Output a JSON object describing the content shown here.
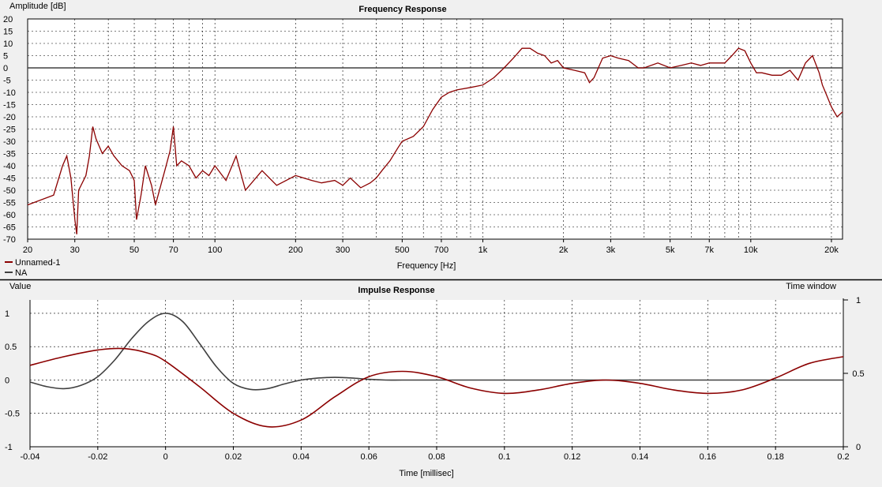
{
  "chart_data": [
    {
      "type": "line",
      "title": "Frequency Response",
      "ylabel": "Amplitude [dB]",
      "xlabel": "Frequency [Hz]",
      "xscale": "log",
      "xlim": [
        20,
        22000
      ],
      "ylim": [
        -70,
        20
      ],
      "grid": true,
      "legend_position": "bottom-left",
      "x_ticks": [
        20,
        30,
        50,
        70,
        100,
        200,
        300,
        500,
        700,
        1000,
        2000,
        3000,
        5000,
        7000,
        10000,
        20000
      ],
      "x_tick_labels": [
        "20",
        "30",
        "50",
        "70",
        "100",
        "200",
        "300",
        "500",
        "700",
        "1k",
        "2k",
        "3k",
        "5k",
        "7k",
        "10k",
        "20k"
      ],
      "y_ticks": [
        20,
        15,
        10,
        5,
        0,
        -5,
        -10,
        -15,
        -20,
        -25,
        -30,
        -35,
        -40,
        -45,
        -50,
        -55,
        -60,
        -65,
        -70
      ],
      "y_tick_labels": [
        "20",
        "15",
        "10",
        "5",
        "0",
        "-5",
        "-10",
        "-15",
        "-20",
        "-25",
        "-30",
        "-35",
        "-40",
        "-45",
        "-50",
        "-55",
        "-60",
        "-65",
        "-70"
      ],
      "series": [
        {
          "name": "Unnamed-1",
          "color": "#8b0000",
          "x": [
            20,
            25,
            27,
            28,
            29,
            30,
            30.5,
            31,
            33,
            34,
            35,
            36,
            38,
            40,
            42,
            45,
            48,
            50,
            51,
            53,
            55,
            58,
            60,
            65,
            68,
            70,
            72,
            75,
            80,
            85,
            90,
            95,
            100,
            110,
            120,
            130,
            150,
            170,
            200,
            230,
            250,
            280,
            300,
            320,
            350,
            380,
            400,
            420,
            450,
            480,
            500,
            550,
            600,
            650,
            700,
            750,
            800,
            900,
            1000,
            1100,
            1200,
            1300,
            1400,
            1500,
            1600,
            1700,
            1800,
            1900,
            2000,
            2200,
            2400,
            2500,
            2600,
            2800,
            3000,
            3200,
            3500,
            3800,
            4000,
            4500,
            5000,
            5500,
            6000,
            6500,
            7000,
            8000,
            8500,
            9000,
            9500,
            10000,
            10500,
            11000,
            12000,
            13000,
            14000,
            15000,
            16000,
            17000,
            18000,
            18500,
            19000,
            20000,
            21000,
            22000
          ],
          "y": [
            -56,
            -52,
            -40,
            -36,
            -45,
            -62,
            -68,
            -50,
            -44,
            -36,
            -24,
            -29,
            -35,
            -32,
            -36,
            -40,
            -42,
            -46,
            -62,
            -52,
            -40,
            -48,
            -56,
            -42,
            -34,
            -24,
            -40,
            -38,
            -40,
            -45,
            -42,
            -44,
            -40,
            -46,
            -36,
            -50,
            -42,
            -48,
            -44,
            -46,
            -47,
            -46,
            -48,
            -45,
            -49,
            -47,
            -45,
            -42,
            -38,
            -33,
            -30,
            -28,
            -24,
            -17,
            -12,
            -10,
            -9,
            -8,
            -7,
            -4,
            0,
            4,
            8,
            8,
            6,
            5,
            2,
            3,
            0,
            -1,
            -2,
            -6,
            -4,
            4,
            5,
            4,
            3,
            0,
            0,
            2,
            0,
            1,
            2,
            1,
            2,
            2,
            5,
            8,
            7,
            2,
            -2,
            -2,
            -3,
            -3,
            -1,
            -5,
            2,
            5,
            -2,
            -7,
            -10,
            -16,
            -20,
            -18
          ]
        },
        {
          "name": "NA",
          "color": "#404040",
          "x": [
            20,
            22000
          ],
          "y": [
            0,
            0
          ]
        }
      ]
    },
    {
      "type": "line",
      "title": "Impulse Response",
      "ylabel": "Value",
      "y2label": "Time window",
      "xlabel": "Time [millisec]",
      "xlim": [
        -0.04,
        0.2
      ],
      "ylim": [
        -1,
        1.2
      ],
      "y2lim": [
        0,
        1
      ],
      "grid": true,
      "x_ticks": [
        -0.04,
        -0.02,
        0,
        0.02,
        0.04,
        0.06,
        0.08,
        0.1,
        0.12,
        0.14,
        0.16,
        0.18,
        0.2
      ],
      "x_tick_labels": [
        "-0.04",
        "-0.02",
        "0",
        "0.02",
        "0.04",
        "0.06",
        "0.08",
        "0.1",
        "0.12",
        "0.14",
        "0.16",
        "0.18",
        "0.2"
      ],
      "y_ticks": [
        1,
        0.5,
        0,
        -0.5,
        -1
      ],
      "y_tick_labels": [
        "1",
        "0.5",
        "0",
        "-0.5",
        "-1"
      ],
      "y2_ticks": [
        1,
        0.5,
        0
      ],
      "y2_tick_labels": [
        "1",
        "0.5",
        "0"
      ],
      "series": [
        {
          "name": "Unnamed-1",
          "color": "#8b0000",
          "x": [
            -0.04,
            -0.03,
            -0.02,
            -0.012,
            -0.005,
            0,
            0.01,
            0.02,
            0.03,
            0.04,
            0.05,
            0.06,
            0.07,
            0.08,
            0.09,
            0.1,
            0.11,
            0.12,
            0.13,
            0.14,
            0.15,
            0.16,
            0.17,
            0.18,
            0.19,
            0.2
          ],
          "y": [
            0.22,
            0.35,
            0.45,
            0.47,
            0.4,
            0.28,
            -0.1,
            -0.5,
            -0.7,
            -0.6,
            -0.25,
            0.05,
            0.13,
            0.05,
            -0.12,
            -0.2,
            -0.15,
            -0.05,
            0,
            -0.05,
            -0.15,
            -0.2,
            -0.15,
            0.03,
            0.25,
            0.35
          ]
        },
        {
          "name": "NA",
          "color": "#404040",
          "x": [
            -0.04,
            -0.035,
            -0.03,
            -0.025,
            -0.02,
            -0.015,
            -0.01,
            -0.005,
            0,
            0.005,
            0.01,
            0.015,
            0.02,
            0.025,
            0.03,
            0.035,
            0.04,
            0.045,
            0.05,
            0.055,
            0.06,
            0.065,
            0.07,
            0.08,
            0.2
          ],
          "y": [
            -0.03,
            -0.1,
            -0.13,
            -0.08,
            0.05,
            0.3,
            0.62,
            0.88,
            1.0,
            0.88,
            0.55,
            0.2,
            -0.05,
            -0.14,
            -0.13,
            -0.06,
            0.0,
            0.03,
            0.04,
            0.03,
            0.01,
            0.0,
            0.0,
            0.0,
            0.0
          ]
        }
      ]
    }
  ]
}
